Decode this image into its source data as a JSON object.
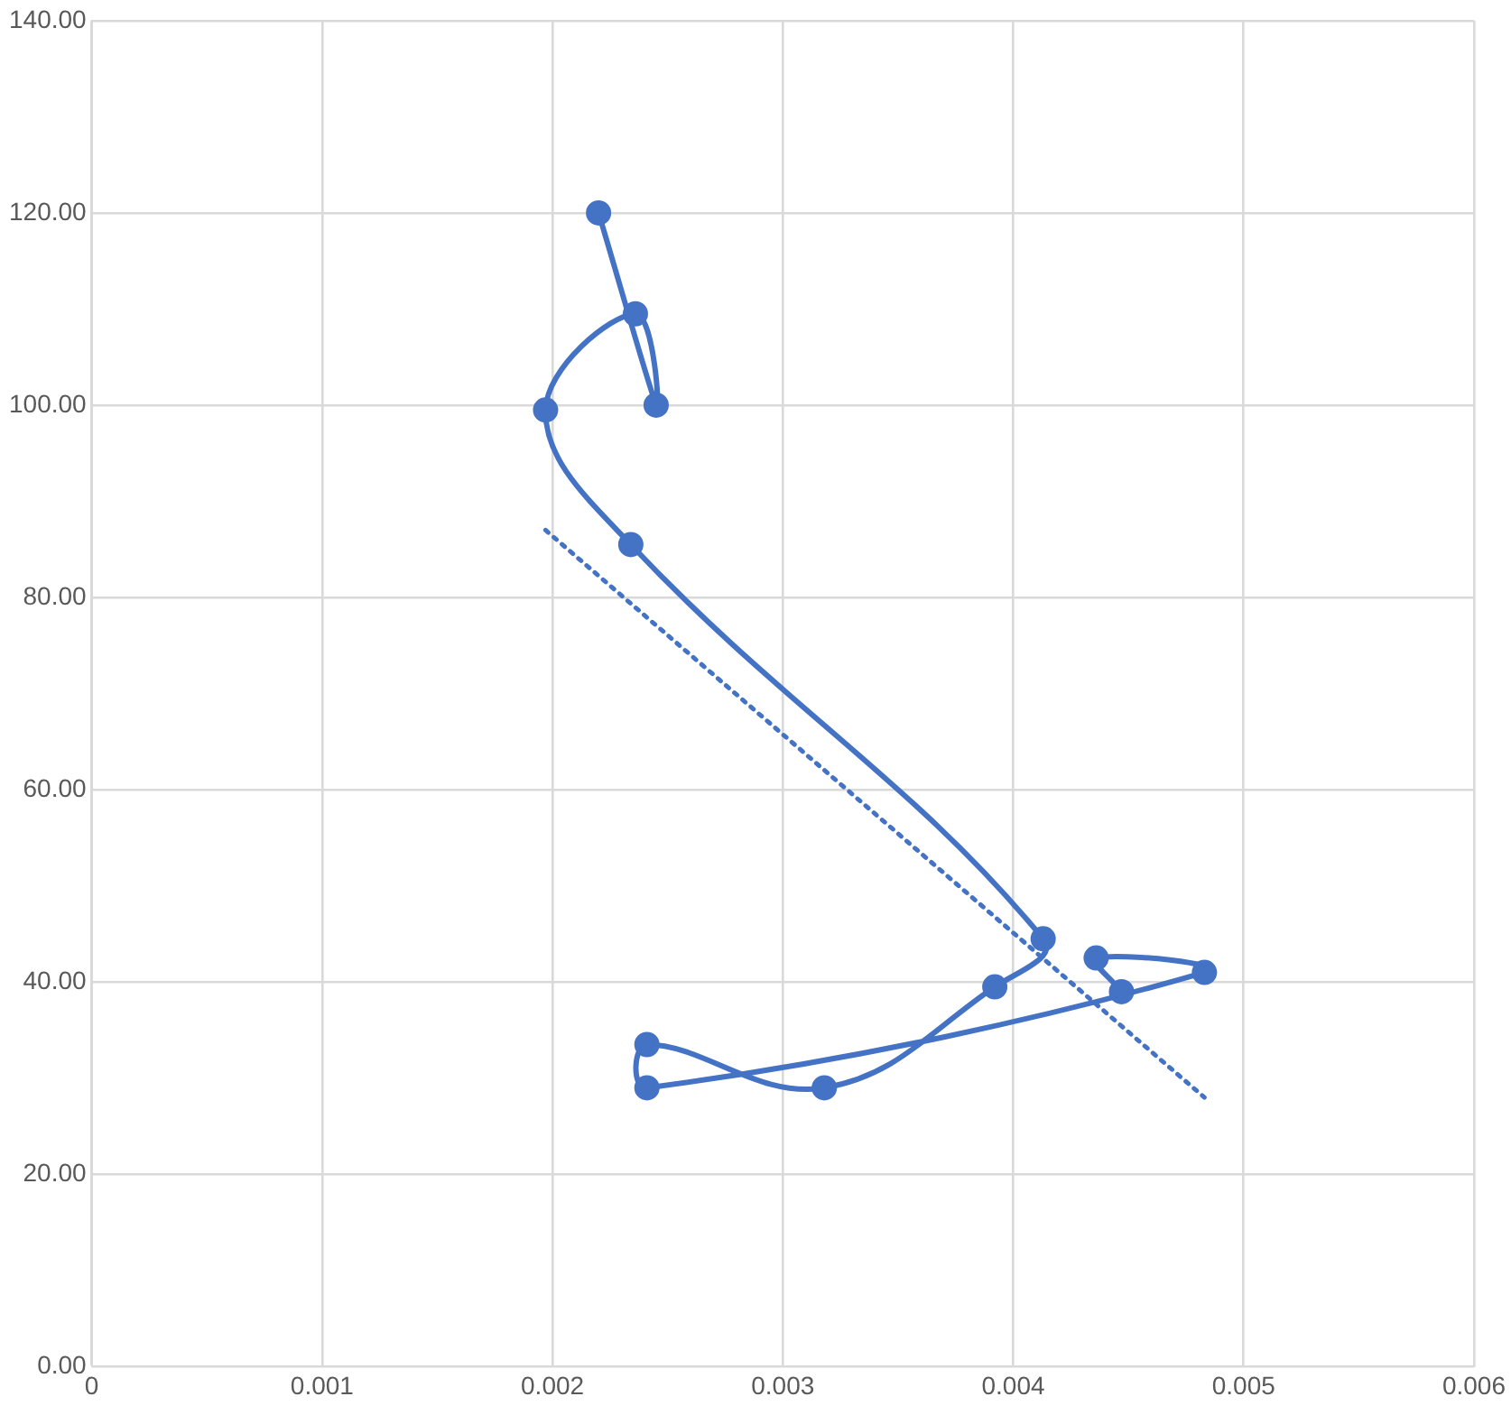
{
  "chart_data": {
    "type": "line",
    "grid": true,
    "legend": false,
    "xlim": [
      0,
      0.006
    ],
    "xticks": [
      0,
      0.001,
      0.002,
      0.003,
      0.004,
      0.005,
      0.006
    ],
    "ylim": [
      0,
      140
    ],
    "yticks": [
      {
        "value": 0,
        "label": "0.00"
      },
      {
        "value": 20,
        "label": "20.00"
      },
      {
        "value": 40,
        "label": "40.00"
      },
      {
        "value": 60,
        "label": "60.00"
      },
      {
        "value": 80,
        "label": "80.00"
      },
      {
        "value": 100,
        "label": "100.00"
      },
      {
        "value": 120,
        "label": "120.00"
      },
      {
        "value": 140,
        "label": "140.00"
      }
    ],
    "series": [
      {
        "color": "#4472c4",
        "marker": "circle",
        "line_style": "solid",
        "x": [
          0.0022,
          0.00245,
          0.00236,
          0.00197,
          0.00234,
          0.00413,
          0.00392,
          0.00318,
          0.00241,
          0.00241,
          0.00483,
          0.00436,
          0.00447
        ],
        "values": [
          120,
          100,
          109.5,
          99.5,
          85.5,
          44.5,
          39.5,
          29,
          33.5,
          29,
          41,
          42.5,
          39
        ]
      },
      {
        "type": "line",
        "color": "#4472c4",
        "marker": "none",
        "line_style": "dotted",
        "x": [
          0.00197,
          0.00483
        ],
        "values": [
          87,
          28
        ]
      }
    ]
  }
}
